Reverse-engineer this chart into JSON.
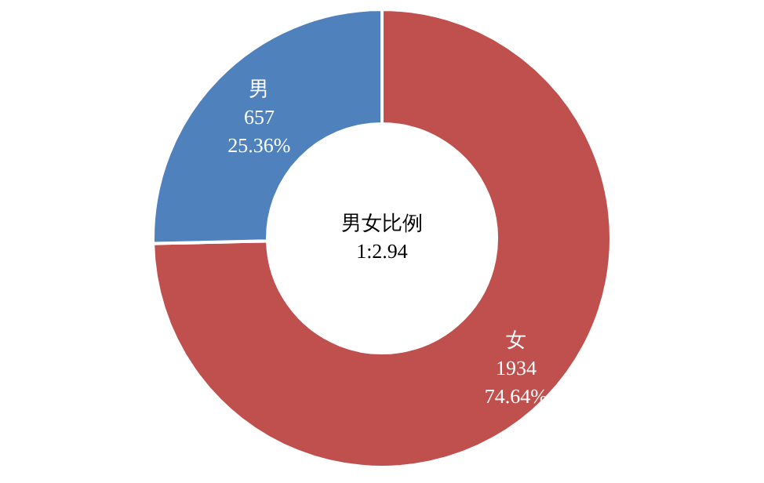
{
  "chart_data": {
    "type": "donut",
    "categories": [
      "女",
      "男"
    ],
    "values": [
      1934,
      657
    ],
    "colors": [
      "#c0504d",
      "#4f81bd"
    ],
    "value_labels": [
      "1934\n74.64%",
      "657\n25.36%"
    ],
    "annotations": [
      "男女比例\n1:2.94"
    ],
    "legend": false
  }
}
